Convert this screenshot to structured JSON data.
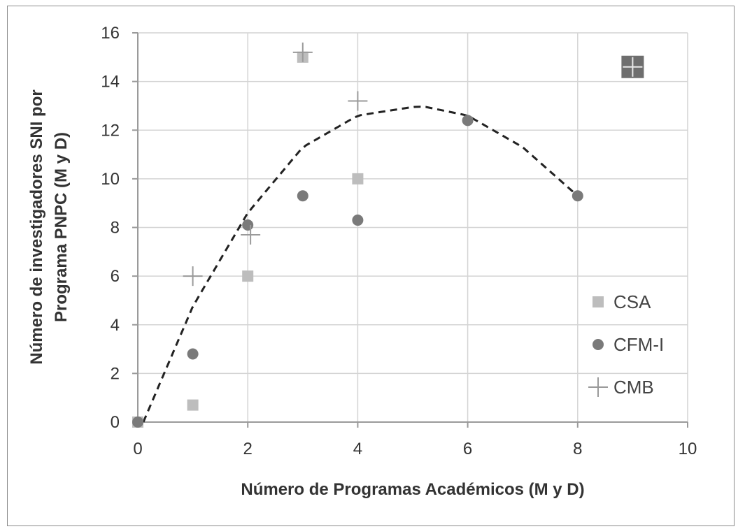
{
  "chart_data": {
    "type": "scatter",
    "title": "",
    "xlabel": "Número de Programas Académicos (M y D)",
    "ylabel_lines": [
      "Número de investigadores SNI por",
      "Programa PNPC (M y D)"
    ],
    "xlim": [
      0,
      10
    ],
    "ylim": [
      0,
      16
    ],
    "x_ticks": [
      0,
      2,
      4,
      6,
      8,
      10
    ],
    "y_ticks": [
      0,
      2,
      4,
      6,
      8,
      10,
      12,
      14,
      16
    ],
    "grid": true,
    "legend_position": "right",
    "series": [
      {
        "name": "CSA",
        "marker": "square",
        "color": "#bdbdbd",
        "points": [
          [
            0,
            0
          ],
          [
            1,
            0.7
          ],
          [
            2,
            6
          ],
          [
            3,
            15
          ],
          [
            4,
            10
          ],
          [
            9,
            14.6
          ]
        ]
      },
      {
        "name": "CFM-I",
        "marker": "circle",
        "color": "#7a7a7a",
        "points": [
          [
            0,
            0
          ],
          [
            1,
            2.8
          ],
          [
            2,
            8.1
          ],
          [
            3,
            9.3
          ],
          [
            4,
            8.3
          ],
          [
            6,
            12.4
          ],
          [
            8,
            9.3
          ]
        ]
      },
      {
        "name": "CMB",
        "marker": "plus",
        "color": "#9a9a9a",
        "points": [
          [
            1,
            6
          ],
          [
            2.05,
            7.7
          ],
          [
            3,
            15.2
          ],
          [
            4,
            13.2
          ],
          [
            9,
            14.6
          ]
        ]
      }
    ],
    "trendline": {
      "style": "dashed",
      "color": "#222222",
      "curve": "quadratic",
      "points": [
        [
          0.1,
          0
        ],
        [
          1,
          4.75
        ],
        [
          2,
          8.6
        ],
        [
          3,
          11.3
        ],
        [
          4,
          12.6
        ],
        [
          5,
          12.95
        ],
        [
          5.2,
          12.97
        ],
        [
          6,
          12.6
        ],
        [
          7,
          11.3
        ],
        [
          8,
          9.3
        ]
      ]
    },
    "highlight_marker": {
      "x": 9,
      "y": 14.6,
      "color": "#6e6e6e"
    }
  }
}
